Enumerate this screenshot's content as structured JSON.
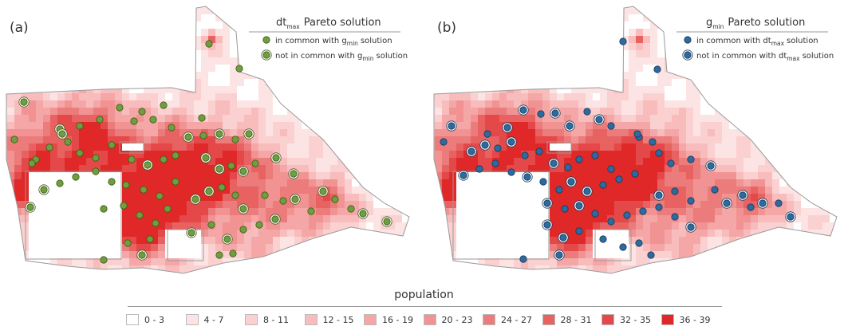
{
  "panels": [
    {
      "label": "(a)",
      "legend_title_main": "dt",
      "legend_title_sub": "max",
      "legend_title_rest": "Pareto solution",
      "item1_text": "in common with g",
      "item1_sub": "min",
      "item1_rest": "solution",
      "item2_text": "not in common with g",
      "item2_sub": "min",
      "item2_rest": "solution",
      "marker_color": "#6f9e3a"
    },
    {
      "label": "(b)",
      "legend_title_main": "g",
      "legend_title_sub": "min",
      "legend_title_rest": "Pareto solution",
      "item1_text": "in common with dt",
      "item1_sub": "max",
      "item1_rest": "solution",
      "item2_text": "not in common with dt",
      "item2_sub": "max",
      "item2_rest": "solution",
      "marker_color": "#2d6a9f"
    }
  ],
  "population_legend": {
    "title": "population",
    "classes": [
      {
        "label": "0 - 3",
        "color": "#ffffff"
      },
      {
        "label": "4 - 7",
        "color": "#fde4e4"
      },
      {
        "label": "8 - 11",
        "color": "#fbd0d0"
      },
      {
        "label": "12 - 15",
        "color": "#f8bcbc"
      },
      {
        "label": "16 - 19",
        "color": "#f5a7a7"
      },
      {
        "label": "20 - 23",
        "color": "#f19393"
      },
      {
        "label": "24 - 27",
        "color": "#ec7b7b"
      },
      {
        "label": "28 - 31",
        "color": "#e86262"
      },
      {
        "label": "32 - 35",
        "color": "#e44848"
      },
      {
        "label": "36 - 39",
        "color": "#e02828"
      }
    ]
  }
}
